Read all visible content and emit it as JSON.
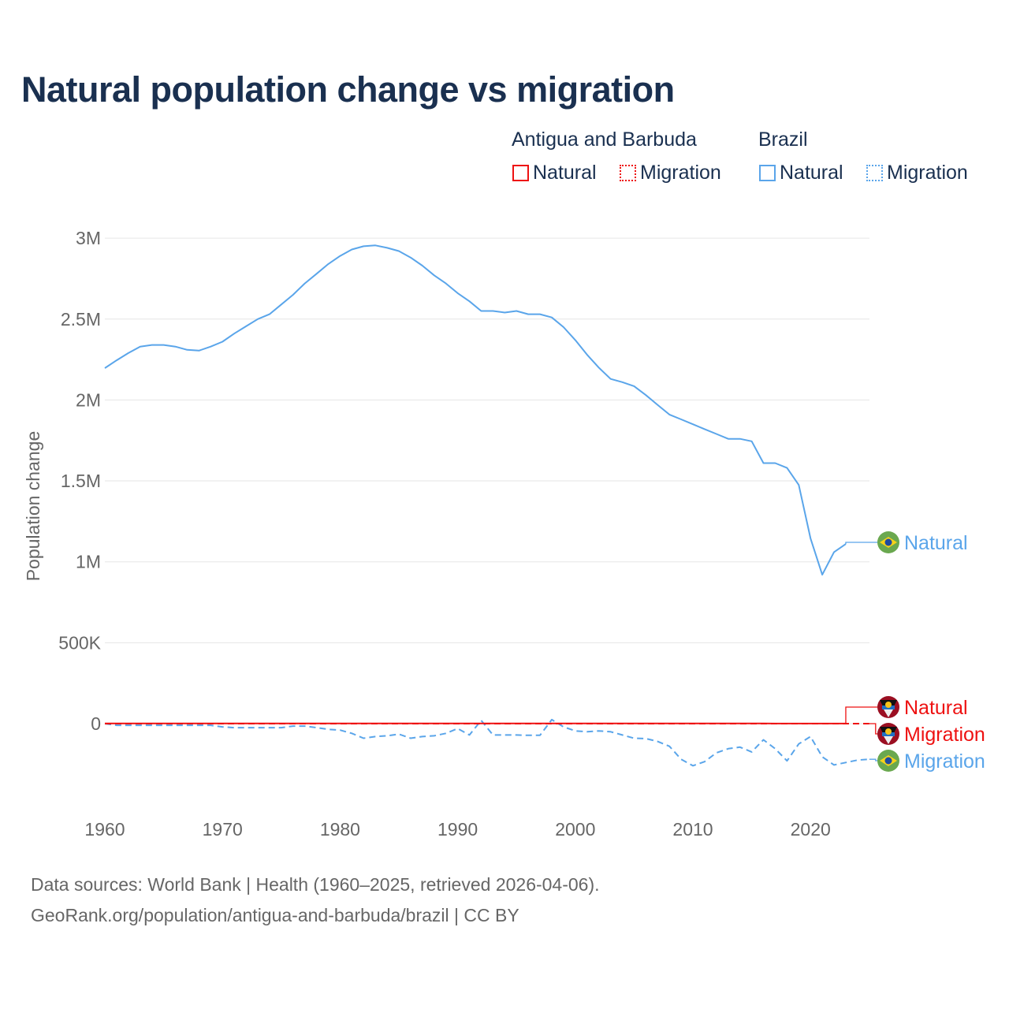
{
  "chart_data": {
    "type": "line",
    "title": "Natural population change vs migration",
    "ylabel": "Population change",
    "xlabel": "",
    "ylim": [
      -500000,
      3000000
    ],
    "xlim": [
      1960,
      2025
    ],
    "grid": true,
    "yticks": [
      {
        "v": 0,
        "label": "0"
      },
      {
        "v": 500000,
        "label": "500K"
      },
      {
        "v": 1000000,
        "label": "1M"
      },
      {
        "v": 1500000,
        "label": "1.5M"
      },
      {
        "v": 2000000,
        "label": "2M"
      },
      {
        "v": 2500000,
        "label": "2.5M"
      },
      {
        "v": 3000000,
        "label": "3M"
      }
    ],
    "xticks": [
      1960,
      1970,
      1980,
      1990,
      2000,
      2010,
      2020
    ],
    "legend": {
      "placement": "top-right",
      "groups": [
        {
          "name": "Antigua and Barbuda",
          "items": [
            "Natural",
            "Migration"
          ]
        },
        {
          "name": "Brazil",
          "items": [
            "Natural",
            "Migration"
          ]
        }
      ]
    },
    "series": [
      {
        "name": "Brazil Natural",
        "country": "Brazil",
        "kind": "Natural",
        "color": "#5aa5ea",
        "dash": false,
        "start": 1960,
        "values": [
          2197000,
          2245000,
          2290000,
          2330000,
          2340000,
          2340000,
          2330000,
          2310000,
          2305000,
          2330000,
          2360000,
          2410000,
          2455000,
          2500000,
          2530000,
          2590000,
          2650000,
          2720000,
          2780000,
          2840000,
          2890000,
          2930000,
          2950000,
          2955000,
          2940000,
          2920000,
          2880000,
          2830000,
          2770000,
          2720000,
          2660000,
          2610000,
          2550000,
          2550000,
          2540000,
          2550000,
          2530000,
          2530000,
          2510000,
          2450000,
          2370000,
          2280000,
          2200000,
          2130000,
          2110000,
          2085000,
          2030000,
          1970000,
          1910000,
          1880000,
          1850000,
          1820000,
          1790000,
          1760000,
          1760000,
          1745000,
          1610000,
          1610000,
          1580000,
          1475000,
          1145000,
          920000,
          1060000,
          1110000
        ]
      },
      {
        "name": "Brazil Migration",
        "country": "Brazil",
        "kind": "Migration",
        "color": "#5aa5ea",
        "dash": true,
        "start": 1960,
        "values": [
          0,
          -10000,
          -10000,
          -10000,
          -10000,
          -10000,
          -10000,
          -10000,
          -10000,
          -10000,
          -20000,
          -25000,
          -25000,
          -25000,
          -25000,
          -25000,
          -15000,
          -15000,
          -25000,
          -35000,
          -40000,
          -60000,
          -90000,
          -80000,
          -75000,
          -65000,
          -90000,
          -80000,
          -75000,
          -60000,
          -30000,
          -70000,
          20000,
          -70000,
          -70000,
          -70000,
          -72000,
          -72000,
          25000,
          -20000,
          -45000,
          -50000,
          -45000,
          -50000,
          -70000,
          -90000,
          -92000,
          -110000,
          -140000,
          -220000,
          -260000,
          -235000,
          -180000,
          -155000,
          -145000,
          -175000,
          -100000,
          -155000,
          -230000,
          -125000,
          -80000,
          -205000,
          -255000,
          -240000,
          -225000,
          -220000
        ]
      },
      {
        "name": "Antigua and Barbuda Natural",
        "country": "Antigua and Barbuda",
        "kind": "Natural",
        "color": "#ee1111",
        "dash": false,
        "start": 1960,
        "values": [
          1500,
          1500,
          1500,
          1500,
          1500,
          1500,
          1500,
          1500,
          1400,
          1400,
          1300,
          1300,
          1300,
          1300,
          1300,
          1300,
          1300,
          1300,
          1300,
          1300,
          1200,
          1200,
          1200,
          1200,
          1200,
          1200,
          1200,
          1200,
          1200,
          1200,
          1200,
          1200,
          1200,
          1200,
          1200,
          1200,
          1200,
          1200,
          1200,
          1200,
          1100,
          1100,
          1100,
          1100,
          1100,
          1000,
          1000,
          1000,
          1000,
          1000,
          900,
          900,
          900,
          900,
          900,
          800,
          800,
          700,
          700,
          600,
          600,
          500,
          500,
          500
        ]
      },
      {
        "name": "Antigua and Barbuda Migration",
        "country": "Antigua and Barbuda",
        "kind": "Migration",
        "color": "#ee1111",
        "dash": true,
        "start": 1960,
        "values": [
          0,
          0,
          0,
          0,
          0,
          0,
          0,
          0,
          0,
          0,
          0,
          0,
          0,
          0,
          0,
          0,
          0,
          0,
          0,
          0,
          0,
          0,
          0,
          0,
          0,
          0,
          0,
          0,
          0,
          0,
          0,
          0,
          0,
          0,
          0,
          0,
          0,
          0,
          0,
          0,
          0,
          0,
          0,
          0,
          0,
          0,
          0,
          0,
          0,
          0,
          0,
          0,
          0,
          0,
          0,
          0,
          0,
          0,
          0,
          0,
          0,
          0,
          0,
          0,
          0,
          0
        ]
      }
    ],
    "end_labels": [
      "Natural",
      "Natural",
      "Migration",
      "Migration"
    ]
  },
  "legend": {
    "group1": "Antigua and Barbuda",
    "group2": "Brazil",
    "natural": "Natural",
    "migration": "Migration"
  },
  "footer": {
    "line1": "Data sources: World Bank | Health (1960–2025, retrieved 2026-04-06).",
    "line2": "GeoRank.org/population/antigua-and-barbuda/brazil | CC BY"
  }
}
